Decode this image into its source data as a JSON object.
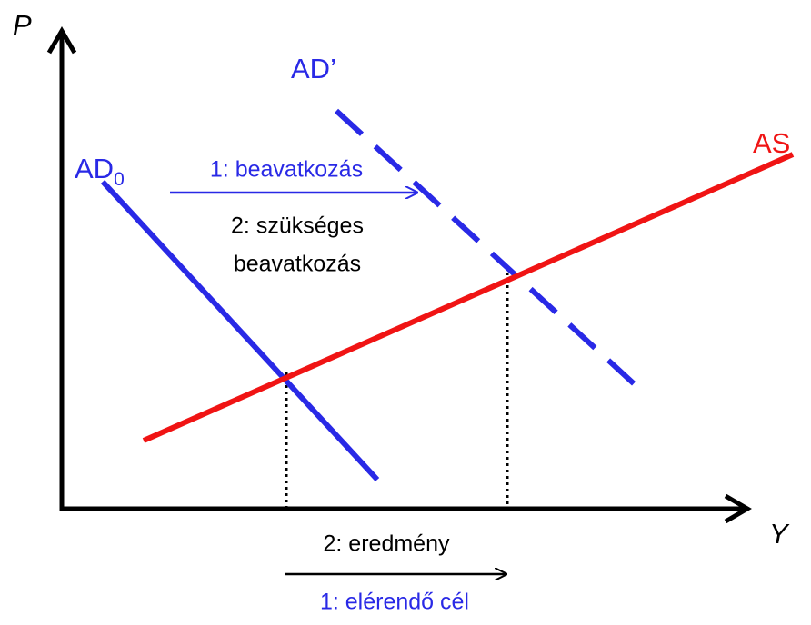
{
  "axes": {
    "y_label": "P",
    "x_label": "Y"
  },
  "curves": {
    "ad0": {
      "label": "AD",
      "subscript": "0"
    },
    "ad1": {
      "label": "AD’"
    },
    "as": {
      "label": "AS"
    }
  },
  "annotations": {
    "top_arrow": "1: beavatkozás",
    "top_note": [
      "2: szükséges",
      "beavatkozás"
    ],
    "bottom_top": "2: eredmény",
    "bottom_bottom": "1: elérendő cél"
  }
}
